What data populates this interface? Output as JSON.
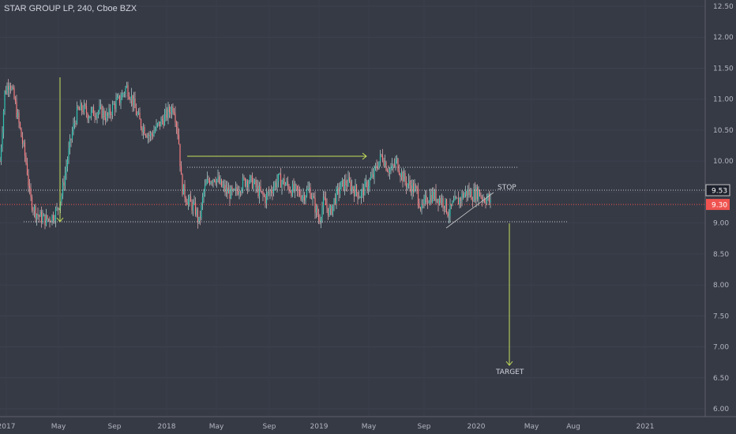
{
  "header": {
    "title": "STAR GROUP LP, 240, Cboe BZX"
  },
  "chart_data": {
    "type": "candlestick",
    "title": "STAR GROUP LP, 240, Cboe BZX",
    "ylim": [
      6.0,
      12.5
    ],
    "y_ticks": [
      "12.50",
      "12.00",
      "11.50",
      "11.00",
      "10.50",
      "10.00",
      "9.50",
      "9.00",
      "8.50",
      "8.00",
      "7.50",
      "7.00",
      "6.50",
      "6.00"
    ],
    "x_ticks": [
      "2017",
      "May",
      "Sep",
      "2018",
      "May",
      "Sep",
      "2019",
      "May",
      "Sep",
      "2020",
      "May",
      "Aug",
      "2021"
    ],
    "price_levels": [
      {
        "label": "9.53",
        "value": 9.53,
        "color": "#c7c7c7"
      },
      {
        "label": "9.30",
        "value": 9.3,
        "color": "#ef5350"
      }
    ],
    "annotations": {
      "stop_label": "STOP",
      "target_label": "TARGET"
    },
    "price_path": [
      [
        0,
        10.0
      ],
      [
        6,
        11.1
      ],
      [
        12,
        11.3
      ],
      [
        18,
        11.0
      ],
      [
        24,
        10.6
      ],
      [
        30,
        10.2
      ],
      [
        34,
        9.9
      ],
      [
        38,
        9.4
      ],
      [
        44,
        9.2
      ],
      [
        50,
        9.1
      ],
      [
        58,
        9.05
      ],
      [
        66,
        9.1
      ],
      [
        72,
        9.2
      ],
      [
        78,
        9.45
      ],
      [
        85,
        10.0
      ],
      [
        92,
        10.5
      ],
      [
        98,
        10.8
      ],
      [
        105,
        10.85
      ],
      [
        112,
        10.75
      ],
      [
        120,
        10.8
      ],
      [
        128,
        10.8
      ],
      [
        136,
        10.7
      ],
      [
        144,
        10.9
      ],
      [
        152,
        11.0
      ],
      [
        160,
        11.2
      ],
      [
        166,
        11.05
      ],
      [
        172,
        10.8
      ],
      [
        178,
        10.6
      ],
      [
        184,
        10.5
      ],
      [
        190,
        10.4
      ],
      [
        196,
        10.5
      ],
      [
        202,
        10.6
      ],
      [
        208,
        10.7
      ],
      [
        214,
        10.8
      ],
      [
        220,
        10.9
      ],
      [
        226,
        10.4
      ],
      [
        230,
        9.6
      ],
      [
        236,
        9.4
      ],
      [
        242,
        9.3
      ],
      [
        248,
        9.2
      ],
      [
        252,
        9.0
      ],
      [
        258,
        9.5
      ],
      [
        264,
        9.7
      ],
      [
        272,
        9.75
      ],
      [
        280,
        9.6
      ],
      [
        288,
        9.5
      ],
      [
        296,
        9.45
      ],
      [
        304,
        9.6
      ],
      [
        312,
        9.7
      ],
      [
        320,
        9.65
      ],
      [
        328,
        9.5
      ],
      [
        336,
        9.4
      ],
      [
        344,
        9.55
      ],
      [
        352,
        9.7
      ],
      [
        360,
        9.65
      ],
      [
        368,
        9.55
      ],
      [
        376,
        9.5
      ],
      [
        384,
        9.45
      ],
      [
        392,
        9.55
      ],
      [
        398,
        9.3
      ],
      [
        404,
        9.05
      ],
      [
        410,
        9.35
      ],
      [
        418,
        9.15
      ],
      [
        424,
        9.4
      ],
      [
        432,
        9.6
      ],
      [
        440,
        9.65
      ],
      [
        448,
        9.55
      ],
      [
        456,
        9.45
      ],
      [
        464,
        9.6
      ],
      [
        472,
        9.75
      ],
      [
        478,
        9.95
      ],
      [
        484,
        10.1
      ],
      [
        490,
        9.9
      ],
      [
        496,
        9.85
      ],
      [
        502,
        10.0
      ],
      [
        508,
        9.8
      ],
      [
        514,
        9.65
      ],
      [
        520,
        9.6
      ],
      [
        528,
        9.5
      ],
      [
        534,
        9.2
      ],
      [
        540,
        9.4
      ],
      [
        548,
        9.45
      ],
      [
        556,
        9.4
      ],
      [
        562,
        9.35
      ],
      [
        568,
        9.15
      ],
      [
        574,
        9.3
      ],
      [
        580,
        9.35
      ],
      [
        586,
        9.45
      ],
      [
        592,
        9.5
      ],
      [
        598,
        9.45
      ],
      [
        606,
        9.5
      ],
      [
        612,
        9.4
      ],
      [
        618,
        9.4
      ],
      [
        621,
        9.3
      ]
    ]
  }
}
